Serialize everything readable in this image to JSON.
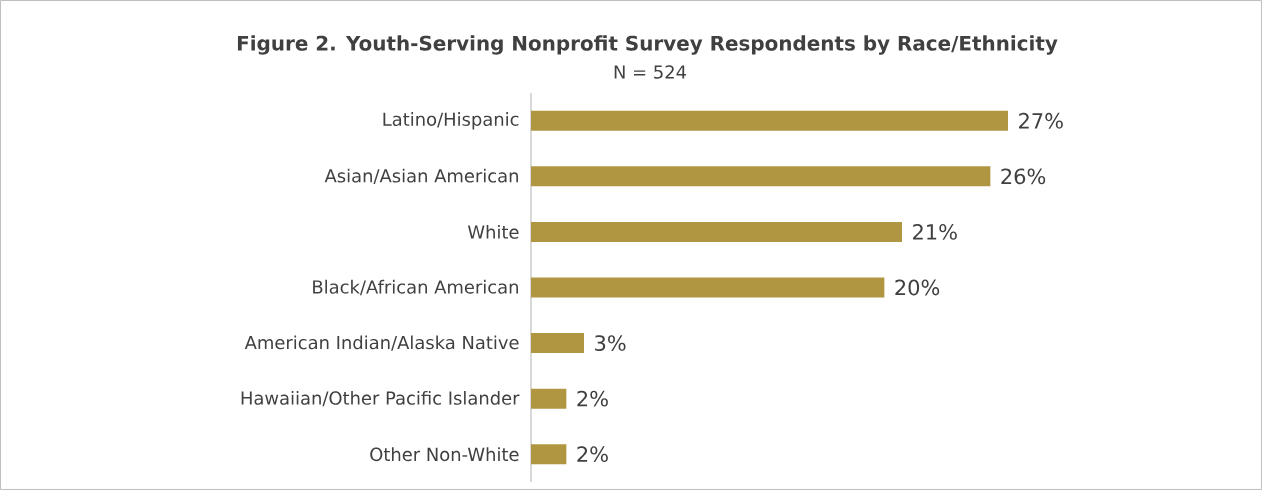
{
  "chart_data": {
    "type": "bar",
    "orientation": "horizontal",
    "title": "Figure 2. Youth-Serving Nonprofit Survey Respondents by Race/Ethnicity",
    "subtitle": "N = 524",
    "categories": [
      "Latino/Hispanic",
      "Asian/Asian American",
      "White",
      "Black/African American",
      "American Indian/Alaska Native",
      "Hawaiian/Other Pacific Islander",
      "Other Non-White"
    ],
    "values": [
      27,
      26,
      21,
      20,
      3,
      2,
      2
    ],
    "value_labels": [
      "27%",
      "26%",
      "21%",
      "20%",
      "3%",
      "2%",
      "2%"
    ],
    "color": "#b09640"
  }
}
